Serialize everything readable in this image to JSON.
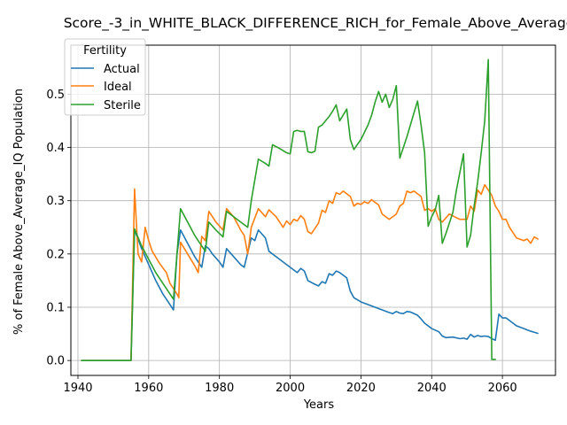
{
  "chart_data": {
    "type": "line",
    "title": "Score_-3_in_WHITE_BLACK_DIFFERENCE_RICH_for_Female_Above_Average",
    "xlabel": "Years",
    "ylabel": "% of Female Above_Average_IQ Population",
    "xlim": [
      1938,
      2075
    ],
    "ylim": [
      -0.028,
      0.592
    ],
    "xticks": [
      1940,
      1960,
      1980,
      2000,
      2020,
      2040,
      2060
    ],
    "yticks": [
      0.0,
      0.1,
      0.2,
      0.3,
      0.4,
      0.5
    ],
    "ytick_labels": [
      "0.0",
      "0.1",
      "0.2",
      "0.3",
      "0.4",
      "0.5"
    ],
    "grid": true,
    "legend": {
      "title": "Fertility",
      "placement": "top-left"
    },
    "series": [
      {
        "name": "Actual",
        "color": "#1f77b4",
        "points": [
          [
            1941,
            0.0
          ],
          [
            1955,
            0.0
          ],
          [
            1956,
            0.245
          ],
          [
            1958,
            0.21
          ],
          [
            1960,
            0.18
          ],
          [
            1962,
            0.15
          ],
          [
            1964,
            0.125
          ],
          [
            1966,
            0.105
          ],
          [
            1967,
            0.095
          ],
          [
            1968,
            0.2
          ],
          [
            1969,
            0.245
          ],
          [
            1971,
            0.22
          ],
          [
            1973,
            0.195
          ],
          [
            1975,
            0.175
          ],
          [
            1976,
            0.215
          ],
          [
            1977,
            0.21
          ],
          [
            1978,
            0.2
          ],
          [
            1980,
            0.185
          ],
          [
            1981,
            0.175
          ],
          [
            1982,
            0.21
          ],
          [
            1984,
            0.195
          ],
          [
            1986,
            0.18
          ],
          [
            1987,
            0.175
          ],
          [
            1989,
            0.23
          ],
          [
            1990,
            0.225
          ],
          [
            1991,
            0.245
          ],
          [
            1993,
            0.23
          ],
          [
            1994,
            0.205
          ],
          [
            1996,
            0.195
          ],
          [
            1998,
            0.185
          ],
          [
            2000,
            0.175
          ],
          [
            2002,
            0.165
          ],
          [
            2003,
            0.173
          ],
          [
            2004,
            0.168
          ],
          [
            2005,
            0.15
          ],
          [
            2007,
            0.143
          ],
          [
            2008,
            0.14
          ],
          [
            2009,
            0.148
          ],
          [
            2010,
            0.145
          ],
          [
            2011,
            0.163
          ],
          [
            2012,
            0.16
          ],
          [
            2013,
            0.168
          ],
          [
            2014,
            0.165
          ],
          [
            2016,
            0.155
          ],
          [
            2017,
            0.13
          ],
          [
            2018,
            0.118
          ],
          [
            2020,
            0.11
          ],
          [
            2022,
            0.105
          ],
          [
            2024,
            0.1
          ],
          [
            2026,
            0.095
          ],
          [
            2028,
            0.09
          ],
          [
            2029,
            0.088
          ],
          [
            2030,
            0.092
          ],
          [
            2031,
            0.089
          ],
          [
            2032,
            0.088
          ],
          [
            2033,
            0.092
          ],
          [
            2034,
            0.091
          ],
          [
            2036,
            0.085
          ],
          [
            2037,
            0.078
          ],
          [
            2038,
            0.07
          ],
          [
            2040,
            0.06
          ],
          [
            2042,
            0.054
          ],
          [
            2043,
            0.046
          ],
          [
            2044,
            0.043
          ],
          [
            2046,
            0.044
          ],
          [
            2048,
            0.041
          ],
          [
            2049,
            0.042
          ],
          [
            2050,
            0.04
          ],
          [
            2051,
            0.049
          ],
          [
            2052,
            0.044
          ],
          [
            2053,
            0.047
          ],
          [
            2054,
            0.045
          ],
          [
            2055,
            0.046
          ],
          [
            2056,
            0.045
          ],
          [
            2057,
            0.041
          ],
          [
            2058,
            0.038
          ],
          [
            2059,
            0.087
          ],
          [
            2060,
            0.08
          ],
          [
            2061,
            0.08
          ],
          [
            2062,
            0.075
          ],
          [
            2063,
            0.07
          ],
          [
            2064,
            0.065
          ],
          [
            2066,
            0.06
          ],
          [
            2068,
            0.055
          ],
          [
            2069,
            0.053
          ],
          [
            2070,
            0.051
          ]
        ]
      },
      {
        "name": "Ideal",
        "color": "#ff7f0e",
        "points": [
          [
            1941,
            0.0
          ],
          [
            1955,
            0.0
          ],
          [
            1956,
            0.322
          ],
          [
            1957,
            0.2
          ],
          [
            1958,
            0.185
          ],
          [
            1959,
            0.25
          ],
          [
            1960,
            0.225
          ],
          [
            1961,
            0.205
          ],
          [
            1963,
            0.183
          ],
          [
            1965,
            0.165
          ],
          [
            1966,
            0.145
          ],
          [
            1968,
            0.125
          ],
          [
            1968.5,
            0.118
          ],
          [
            1969,
            0.222
          ],
          [
            1971,
            0.2
          ],
          [
            1973,
            0.178
          ],
          [
            1974,
            0.165
          ],
          [
            1975,
            0.233
          ],
          [
            1976,
            0.225
          ],
          [
            1977,
            0.28
          ],
          [
            1979,
            0.26
          ],
          [
            1981,
            0.245
          ],
          [
            1982,
            0.285
          ],
          [
            1984,
            0.27
          ],
          [
            1986,
            0.245
          ],
          [
            1987,
            0.235
          ],
          [
            1988,
            0.2
          ],
          [
            1989,
            0.25
          ],
          [
            1991,
            0.285
          ],
          [
            1993,
            0.27
          ],
          [
            1994,
            0.283
          ],
          [
            1996,
            0.27
          ],
          [
            1998,
            0.25
          ],
          [
            1999,
            0.262
          ],
          [
            2000,
            0.255
          ],
          [
            2001,
            0.265
          ],
          [
            2002,
            0.262
          ],
          [
            2003,
            0.272
          ],
          [
            2004,
            0.265
          ],
          [
            2005,
            0.242
          ],
          [
            2006,
            0.238
          ],
          [
            2008,
            0.258
          ],
          [
            2009,
            0.282
          ],
          [
            2010,
            0.278
          ],
          [
            2011,
            0.3
          ],
          [
            2012,
            0.295
          ],
          [
            2013,
            0.315
          ],
          [
            2014,
            0.312
          ],
          [
            2015,
            0.318
          ],
          [
            2017,
            0.308
          ],
          [
            2018,
            0.29
          ],
          [
            2019,
            0.295
          ],
          [
            2020,
            0.293
          ],
          [
            2021,
            0.298
          ],
          [
            2022,
            0.295
          ],
          [
            2023,
            0.302
          ],
          [
            2025,
            0.292
          ],
          [
            2026,
            0.275
          ],
          [
            2028,
            0.265
          ],
          [
            2030,
            0.275
          ],
          [
            2031,
            0.29
          ],
          [
            2032,
            0.295
          ],
          [
            2033,
            0.318
          ],
          [
            2034,
            0.315
          ],
          [
            2035,
            0.318
          ],
          [
            2037,
            0.308
          ],
          [
            2038,
            0.282
          ],
          [
            2039,
            0.285
          ],
          [
            2040,
            0.28
          ],
          [
            2041,
            0.285
          ],
          [
            2042,
            0.265
          ],
          [
            2043,
            0.26
          ],
          [
            2045,
            0.275
          ],
          [
            2047,
            0.268
          ],
          [
            2048,
            0.265
          ],
          [
            2050,
            0.265
          ],
          [
            2051,
            0.29
          ],
          [
            2052,
            0.28
          ],
          [
            2053,
            0.32
          ],
          [
            2054,
            0.312
          ],
          [
            2055,
            0.33
          ],
          [
            2056,
            0.32
          ],
          [
            2057,
            0.31
          ],
          [
            2058,
            0.29
          ],
          [
            2059,
            0.28
          ],
          [
            2060,
            0.265
          ],
          [
            2061,
            0.265
          ],
          [
            2062,
            0.25
          ],
          [
            2063,
            0.24
          ],
          [
            2064,
            0.23
          ],
          [
            2066,
            0.225
          ],
          [
            2067,
            0.228
          ],
          [
            2068,
            0.22
          ],
          [
            2069,
            0.232
          ],
          [
            2070,
            0.228
          ]
        ]
      },
      {
        "name": "Sterile",
        "color": "#2ca02c",
        "points": [
          [
            1941,
            0.0
          ],
          [
            1955,
            0.0
          ],
          [
            1956,
            0.247
          ],
          [
            1958,
            0.215
          ],
          [
            1960,
            0.19
          ],
          [
            1962,
            0.165
          ],
          [
            1964,
            0.145
          ],
          [
            1966,
            0.125
          ],
          [
            1967,
            0.115
          ],
          [
            1968,
            0.2
          ],
          [
            1969,
            0.285
          ],
          [
            1971,
            0.26
          ],
          [
            1973,
            0.235
          ],
          [
            1975,
            0.215
          ],
          [
            1976,
            0.205
          ],
          [
            1977,
            0.26
          ],
          [
            1979,
            0.245
          ],
          [
            1981,
            0.232
          ],
          [
            1982,
            0.28
          ],
          [
            1984,
            0.27
          ],
          [
            1986,
            0.26
          ],
          [
            1988,
            0.25
          ],
          [
            1989,
            0.3
          ],
          [
            1991,
            0.378
          ],
          [
            1993,
            0.37
          ],
          [
            1994,
            0.365
          ],
          [
            1995,
            0.405
          ],
          [
            1997,
            0.398
          ],
          [
            1999,
            0.39
          ],
          [
            2000,
            0.388
          ],
          [
            2001,
            0.43
          ],
          [
            2002,
            0.432
          ],
          [
            2003,
            0.43
          ],
          [
            2004,
            0.43
          ],
          [
            2005,
            0.392
          ],
          [
            2006,
            0.39
          ],
          [
            2007,
            0.393
          ],
          [
            2008,
            0.438
          ],
          [
            2009,
            0.442
          ],
          [
            2011,
            0.458
          ],
          [
            2012,
            0.468
          ],
          [
            2013,
            0.48
          ],
          [
            2014,
            0.45
          ],
          [
            2016,
            0.472
          ],
          [
            2017,
            0.415
          ],
          [
            2018,
            0.396
          ],
          [
            2020,
            0.415
          ],
          [
            2022,
            0.442
          ],
          [
            2023,
            0.46
          ],
          [
            2024,
            0.485
          ],
          [
            2025,
            0.505
          ],
          [
            2026,
            0.485
          ],
          [
            2027,
            0.5
          ],
          [
            2028,
            0.475
          ],
          [
            2029,
            0.49
          ],
          [
            2030,
            0.516
          ],
          [
            2031,
            0.38
          ],
          [
            2032,
            0.4
          ],
          [
            2033,
            0.42
          ],
          [
            2035,
            0.465
          ],
          [
            2036,
            0.487
          ],
          [
            2037,
            0.442
          ],
          [
            2038,
            0.39
          ],
          [
            2039,
            0.252
          ],
          [
            2040,
            0.27
          ],
          [
            2041,
            0.283
          ],
          [
            2042,
            0.31
          ],
          [
            2043,
            0.22
          ],
          [
            2044,
            0.238
          ],
          [
            2046,
            0.278
          ],
          [
            2047,
            0.32
          ],
          [
            2049,
            0.388
          ],
          [
            2050,
            0.213
          ],
          [
            2051,
            0.235
          ],
          [
            2052,
            0.29
          ],
          [
            2053,
            0.335
          ],
          [
            2054,
            0.39
          ],
          [
            2055,
            0.45
          ],
          [
            2056,
            0.565
          ],
          [
            2057,
            0.002
          ],
          [
            2058,
            0.002
          ]
        ]
      }
    ]
  }
}
